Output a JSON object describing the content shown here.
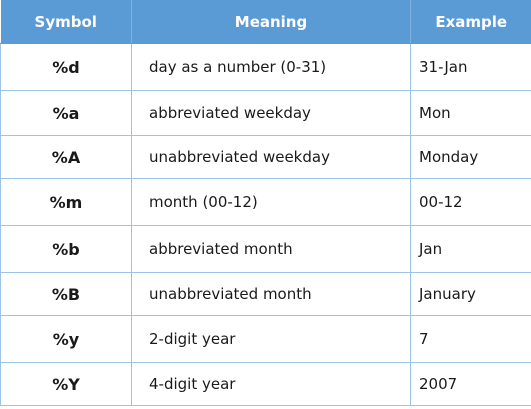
{
  "table": {
    "headers": {
      "symbol": "Symbol",
      "meaning": "Meaning",
      "example": "Example"
    },
    "rows": [
      {
        "symbol": "%d",
        "meaning": "day as a number (0-31)",
        "example": "31-Jan"
      },
      {
        "symbol": "%a",
        "meaning": "abbreviated weekday",
        "example": "Mon"
      },
      {
        "symbol": "%A",
        "meaning": "unabbreviated weekday",
        "example": "Monday"
      },
      {
        "symbol": "%m",
        "meaning": "month (00-12)",
        "example": "00-12"
      },
      {
        "symbol": "%b",
        "meaning": "abbreviated month",
        "example": "Jan"
      },
      {
        "symbol": "%B",
        "meaning": "unabbreviated month",
        "example": "January"
      },
      {
        "symbol": "%y",
        "meaning": "2-digit year",
        "example": "7"
      },
      {
        "symbol": "%Y",
        "meaning": "4-digit year",
        "example": "2007"
      }
    ]
  },
  "colors": {
    "header_background": "#5b9bd5",
    "header_text": "#ffffff",
    "grid_line": "#9dc3e6"
  }
}
